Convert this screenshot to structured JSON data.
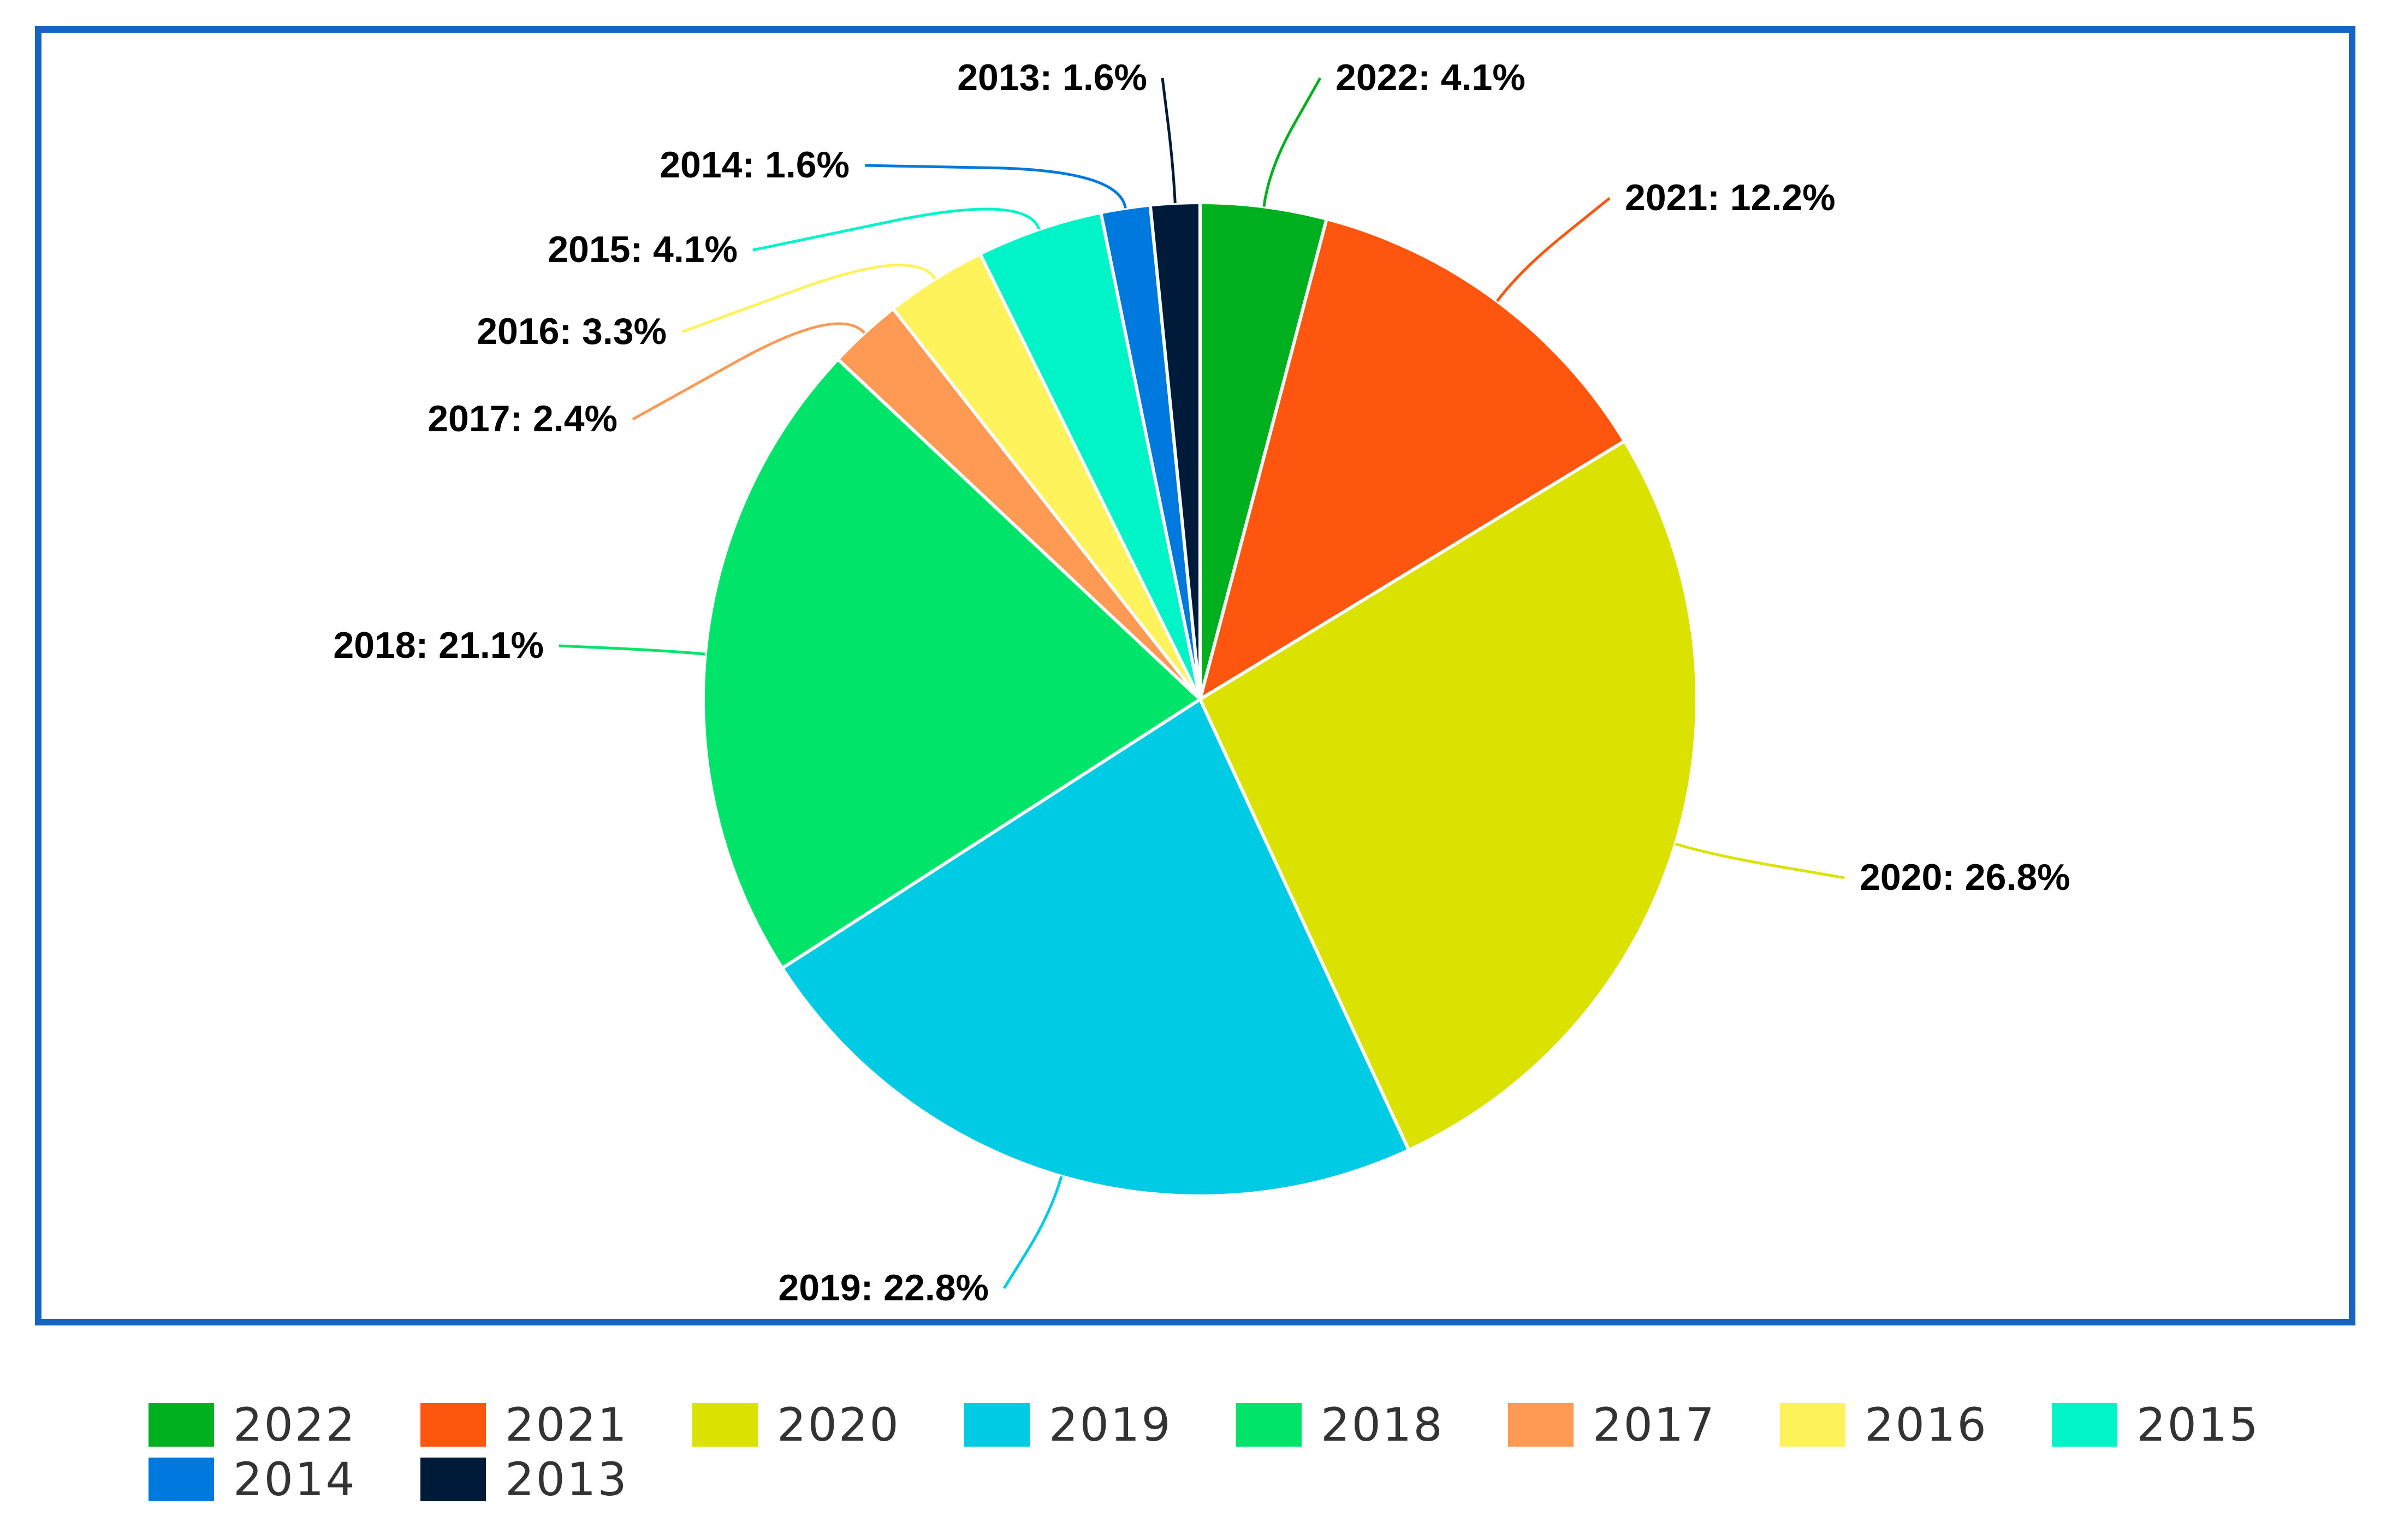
{
  "chart_data": {
    "type": "pie",
    "title": "",
    "series": [
      {
        "values": [
          4.1,
          12.2,
          26.8,
          22.8,
          21.1,
          2.4,
          3.3,
          4.1,
          1.6,
          1.6
        ]
      }
    ],
    "categories": [
      "2022",
      "2021",
      "2020",
      "2019",
      "2018",
      "2017",
      "2016",
      "2015",
      "2014",
      "2013"
    ],
    "labels": [
      "2022: 4.1%",
      "2021: 12.2%",
      "2020: 26.8%",
      "2019: 22.8%",
      "2018: 21.1%",
      "2017: 2.4%",
      "2016: 3.3%",
      "2015: 4.1%",
      "2014: 1.6%",
      "2013: 1.6%"
    ],
    "colors": [
      "#00b01e",
      "#ff560f",
      "#dce200",
      "#00cbe5",
      "#00e46a",
      "#ff9a55",
      "#fff35c",
      "#00f4c8",
      "#0079de",
      "#001b3a"
    ],
    "start_angle_deg": 0,
    "direction": "clockwise",
    "legend": {
      "placement": "bottom",
      "items": [
        "2022",
        "2021",
        "2020",
        "2019",
        "2018",
        "2017",
        "2016",
        "2015",
        "2014",
        "2013"
      ]
    }
  }
}
